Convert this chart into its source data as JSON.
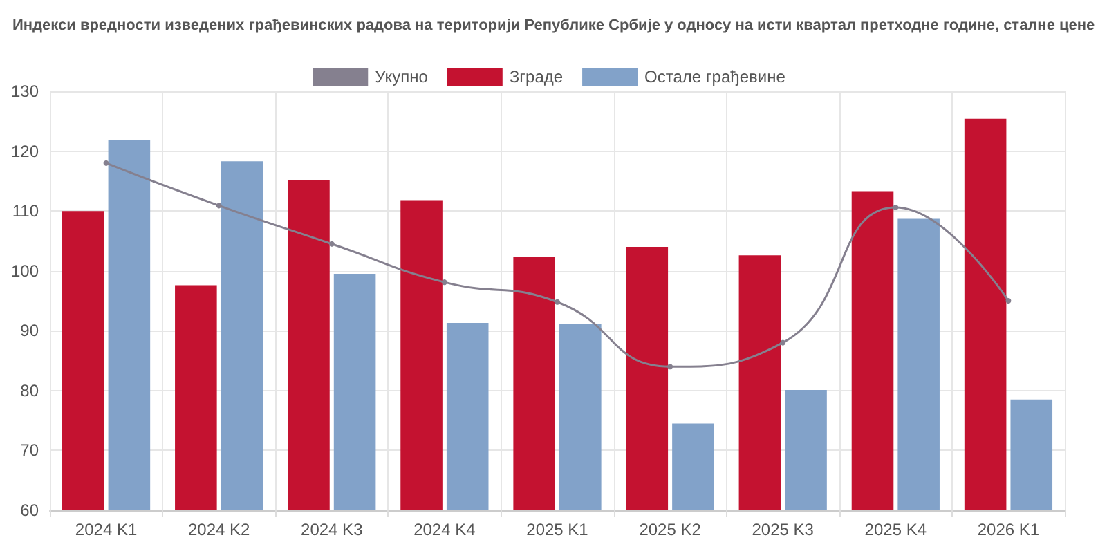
{
  "chart_data": {
    "type": "bar",
    "title": "Индекси вредности изведених грађевинских радова на територији Републике Србије у односу на исти квартал претходне године, сталне цене",
    "categories": [
      "2024 K1",
      "2024 K2",
      "2024 K3",
      "2024 K4",
      "2025 K1",
      "2025 K2",
      "2025 K3",
      "2025 K4",
      "2026 K1"
    ],
    "series": [
      {
        "name": "Укупно",
        "type": "line",
        "color": "#85808f",
        "values": [
          118.0,
          110.9,
          104.5,
          98.1,
          94.8,
          84.0,
          88.0,
          110.6,
          95.0
        ]
      },
      {
        "name": "Зграде",
        "color": "#c41230",
        "values": [
          110.0,
          97.6,
          115.2,
          111.8,
          102.3,
          104.0,
          102.6,
          113.3,
          125.4
        ]
      },
      {
        "name": "Остале грађевине",
        "color": "#82a2c9",
        "values": [
          121.8,
          118.3,
          99.5,
          91.3,
          91.1,
          74.5,
          80.1,
          108.7,
          78.5
        ]
      }
    ],
    "ylim": [
      60,
      130
    ],
    "yticks": [
      60,
      70,
      80,
      90,
      100,
      110,
      120,
      130
    ],
    "grid": true,
    "legend": "top",
    "marker": "circle"
  }
}
